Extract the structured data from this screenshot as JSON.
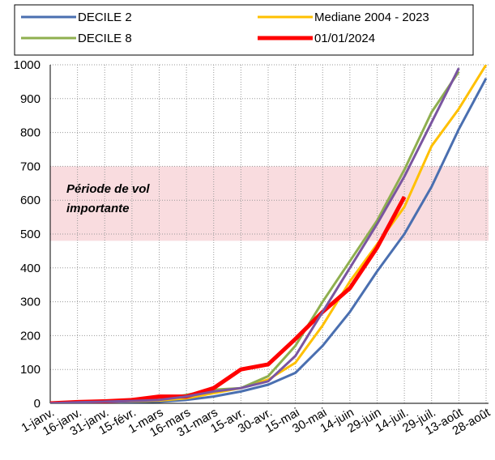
{
  "chart_data": {
    "type": "line",
    "categories": [
      "1-janv.",
      "16-janv.",
      "31-janv.",
      "15-févr.",
      "1-mars",
      "16-mars",
      "31-mars",
      "15-avr.",
      "30-avr.",
      "15-mai",
      "30-mai",
      "14-juin",
      "29-juin",
      "14-juil.",
      "29-juil.",
      "13-août",
      "28-août"
    ],
    "series": [
      {
        "name": "DECILE 2",
        "color": "#4a6fb0",
        "values": [
          0,
          2,
          3,
          4,
          5,
          10,
          20,
          35,
          55,
          90,
          170,
          270,
          390,
          500,
          640,
          810,
          960
        ]
      },
      {
        "name": "Mediane 2004 - 2023",
        "color": "#ffc000",
        "values": [
          0,
          3,
          5,
          6,
          8,
          15,
          30,
          45,
          70,
          120,
          230,
          360,
          470,
          580,
          760,
          870,
          1000
        ]
      },
      {
        "name": "DECILE 8",
        "color": "#8faf4f",
        "values": [
          0,
          4,
          6,
          8,
          12,
          25,
          40,
          45,
          80,
          170,
          300,
          420,
          540,
          690,
          860,
          980,
          null
        ]
      },
      {
        "name": "01/01/2024",
        "color": "#ff0000",
        "values": [
          0,
          4,
          6,
          10,
          20,
          20,
          45,
          100,
          115,
          190,
          270,
          340,
          460,
          610,
          null,
          null,
          null
        ]
      },
      {
        "color": "#7a55a0",
        "values": [
          0,
          3,
          5,
          7,
          10,
          20,
          35,
          45,
          65,
          140,
          270,
          400,
          530,
          670,
          830,
          990,
          null
        ]
      }
    ],
    "band": {
      "range": [
        480,
        700
      ],
      "label": [
        "Période de vol",
        "importante"
      ],
      "color": "#f9dcdf"
    },
    "ylim": [
      0,
      1000
    ],
    "yticks": [
      0,
      100,
      200,
      300,
      400,
      500,
      600,
      700,
      800,
      900,
      1000
    ],
    "grid": true
  }
}
